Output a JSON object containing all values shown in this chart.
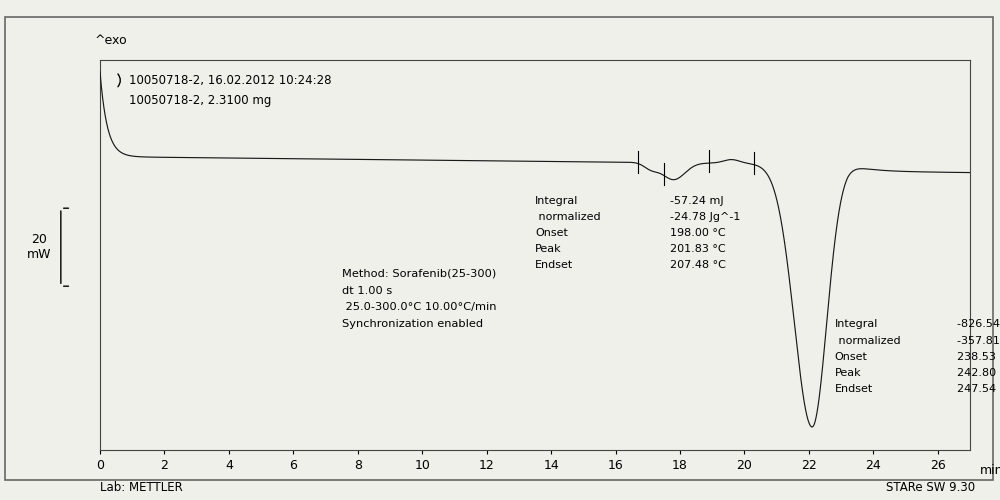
{
  "header_line1": "10050718-2, 16.02.2012 10:24:28",
  "header_line2": "10050718-2, 2.3100 mg",
  "xlabel_unit": "min",
  "xmin": 0,
  "xmax": 27,
  "xticks": [
    0,
    2,
    4,
    6,
    8,
    10,
    12,
    14,
    16,
    18,
    20,
    22,
    24,
    26
  ],
  "method_text_l1": "Method: Sorafenib(25-300)",
  "method_text_l2": "dt 1.00 s",
  "method_text_l3": " 25.0-300.0°C 10.00°C/min",
  "method_text_l4": "Synchronization enabled",
  "lab_label": "Lab: METTLER",
  "software_label": "STARe SW 9.30",
  "bg_color": "#f0f0ea",
  "line_color": "#1a1a1a"
}
